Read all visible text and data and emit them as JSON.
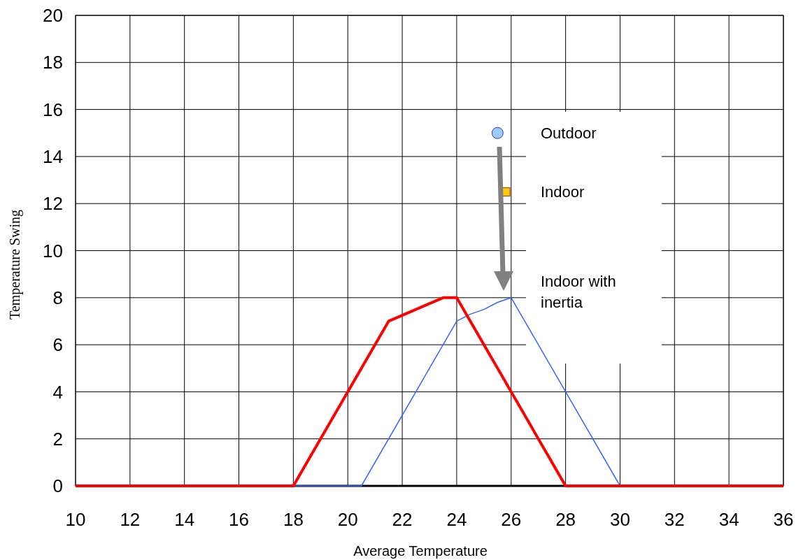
{
  "chart_data": {
    "type": "line",
    "xlabel": "Average Temperature",
    "ylabel": "Temperature Swing",
    "xlim": [
      10,
      36
    ],
    "ylim": [
      0,
      20
    ],
    "xticks": [
      10,
      12,
      14,
      16,
      18,
      20,
      22,
      24,
      26,
      28,
      30,
      32,
      34,
      36
    ],
    "yticks": [
      0,
      2,
      4,
      6,
      8,
      10,
      12,
      14,
      16,
      18,
      20
    ],
    "grid": true,
    "legend": false,
    "series": [
      {
        "color": "#ff0000",
        "x": [
          10,
          18,
          21.5,
          23.5,
          24,
          28,
          36
        ],
        "values": [
          0,
          0,
          7,
          8,
          8,
          0,
          0
        ]
      },
      {
        "name": "Indoor with inertia",
        "color": "#3366ff",
        "x": [
          18,
          20.5,
          24,
          24.5,
          25,
          25.5,
          26,
          28,
          30
        ],
        "values": [
          0,
          0,
          7,
          7.3,
          7.5,
          7.8,
          8,
          4,
          0
        ]
      },
      {
        "name": "Outdoor",
        "type": "scatter",
        "marker": "circle",
        "color": "#99ccff",
        "x": [
          25.5
        ],
        "values": [
          15
        ]
      },
      {
        "name": "Indoor",
        "type": "scatter",
        "marker": "square",
        "color": "#ffcc00",
        "x": [
          25.8
        ],
        "values": [
          12.5
        ]
      }
    ]
  }
}
